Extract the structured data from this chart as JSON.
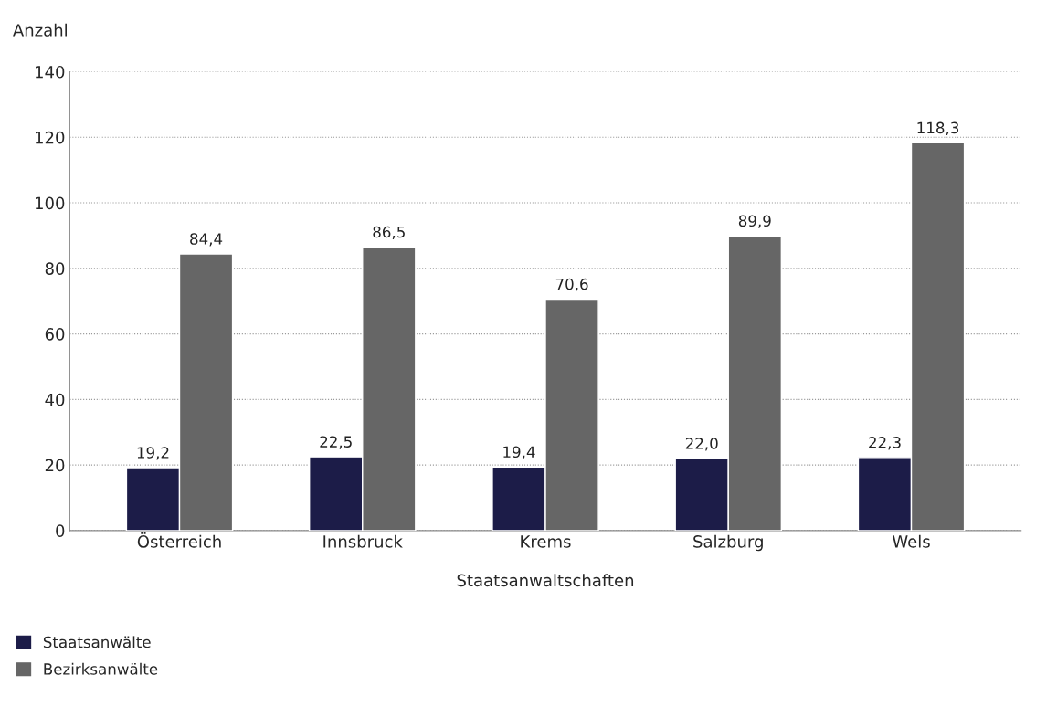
{
  "chart_data": {
    "type": "bar",
    "ylabel": "Anzahl",
    "xlabel": "Staatsanwaltschaften",
    "categories": [
      "Österreich",
      "Innsbruck",
      "Krems",
      "Salzburg",
      "Wels"
    ],
    "series": [
      {
        "name": "Staatsanwälte",
        "color": "#1c1c48",
        "values": [
          19.2,
          22.5,
          19.4,
          22.0,
          22.3
        ],
        "value_labels": [
          "19,2",
          "22,5",
          "19,4",
          "22,0",
          "22,3"
        ]
      },
      {
        "name": "Bezirksanwälte",
        "color": "#666666",
        "values": [
          84.4,
          86.5,
          70.6,
          89.9,
          118.3
        ],
        "value_labels": [
          "84,4",
          "86,5",
          "70,6",
          "89,9",
          "118,3"
        ]
      }
    ],
    "ylim": [
      0,
      140
    ],
    "yticks": [
      0,
      20,
      40,
      60,
      80,
      100,
      120,
      140
    ],
    "grid": "y",
    "legend": "bottom left"
  }
}
